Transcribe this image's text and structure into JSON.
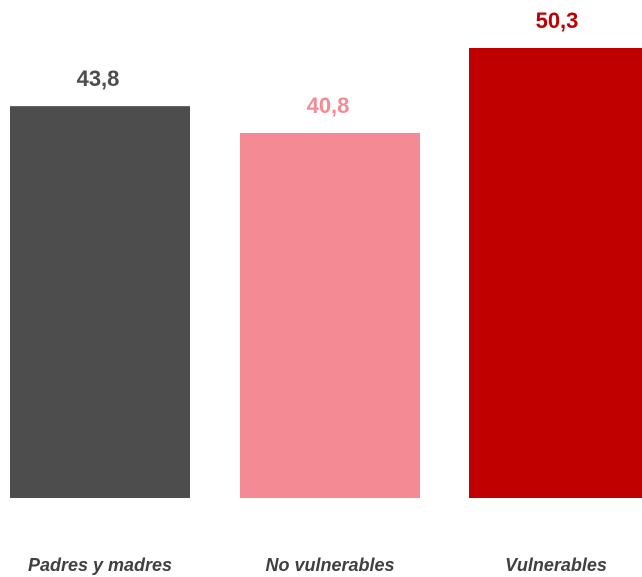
{
  "chart_data": {
    "type": "bar",
    "categories": [
      "Padres y madres",
      "No vulnerables",
      "Vulnerables"
    ],
    "values": [
      43.8,
      40.8,
      50.3
    ],
    "value_labels": [
      "43,8",
      "40,8",
      "50,3"
    ],
    "colors": [
      "#4d4d4d",
      "#f48b94",
      "#c00000"
    ]
  }
}
